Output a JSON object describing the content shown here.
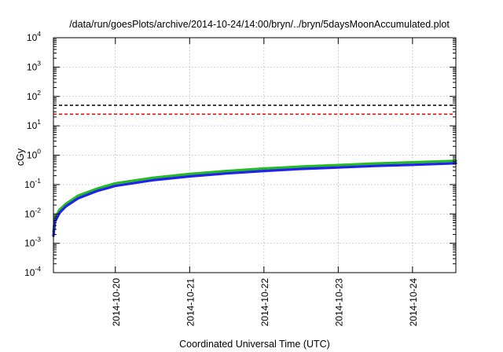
{
  "chart_data": {
    "type": "line",
    "title": "/data/run/goesPlots/archive/2014-10-24/14:00/bryn/../bryn/5daysMoonAccumulated.plot",
    "xlabel": "Coordinated Universal Time (UTC)",
    "ylabel": "cGy",
    "yscale": "log",
    "ylim": [
      0.0001,
      10000
    ],
    "y_ticks": [
      {
        "base": "10",
        "exp": "-4"
      },
      {
        "base": "10",
        "exp": "-3"
      },
      {
        "base": "10",
        "exp": "-2"
      },
      {
        "base": "10",
        "exp": "-1"
      },
      {
        "base": "10",
        "exp": "0"
      },
      {
        "base": "10",
        "exp": "1"
      },
      {
        "base": "10",
        "exp": "2"
      },
      {
        "base": "10",
        "exp": "3"
      },
      {
        "base": "10",
        "exp": "4"
      }
    ],
    "xlim": [
      "2014-10-19T04:00",
      "2014-10-24T14:00"
    ],
    "x_ticks": [
      "2014-10-20",
      "2014-10-21",
      "2014-10-22",
      "2014-10-23",
      "2014-10-24"
    ],
    "grid": true,
    "series": [
      {
        "color": "#22bb22",
        "x": [
          "2014-10-19T04:00",
          "2014-10-19T04:30",
          "2014-10-19T06:00",
          "2014-10-19T08:00",
          "2014-10-19T12:00",
          "2014-10-19T18:00",
          "2014-10-20T00:00",
          "2014-10-20T12:00",
          "2014-10-21T00:00",
          "2014-10-21T12:00",
          "2014-10-22T00:00",
          "2014-10-22T12:00",
          "2014-10-23T00:00",
          "2014-10-23T12:00",
          "2014-10-24T00:00",
          "2014-10-24T14:00"
        ],
        "y": [
          0.0025,
          0.007,
          0.014,
          0.022,
          0.042,
          0.072,
          0.11,
          0.17,
          0.23,
          0.29,
          0.35,
          0.41,
          0.46,
          0.52,
          0.57,
          0.64
        ]
      },
      {
        "color": "#2222ee",
        "x": [
          "2014-10-19T04:00",
          "2014-10-19T04:30",
          "2014-10-19T06:00",
          "2014-10-19T08:00",
          "2014-10-19T12:00",
          "2014-10-19T18:00",
          "2014-10-20T00:00",
          "2014-10-20T12:00",
          "2014-10-21T00:00",
          "2014-10-21T12:00",
          "2014-10-22T00:00",
          "2014-10-22T12:00",
          "2014-10-23T00:00",
          "2014-10-23T12:00",
          "2014-10-24T00:00",
          "2014-10-24T14:00"
        ],
        "y": [
          0.0018,
          0.0055,
          0.011,
          0.018,
          0.034,
          0.06,
          0.09,
          0.14,
          0.19,
          0.24,
          0.29,
          0.34,
          0.38,
          0.43,
          0.47,
          0.53
        ]
      },
      {
        "color": "#000000",
        "dashed": true,
        "x": [
          "2014-10-19T04:00",
          "2014-10-24T14:00"
        ],
        "y": [
          50,
          50
        ]
      },
      {
        "color": "#ee1111",
        "dashed": true,
        "x": [
          "2014-10-19T04:00",
          "2014-10-24T14:00"
        ],
        "y": [
          25,
          25
        ]
      }
    ]
  }
}
